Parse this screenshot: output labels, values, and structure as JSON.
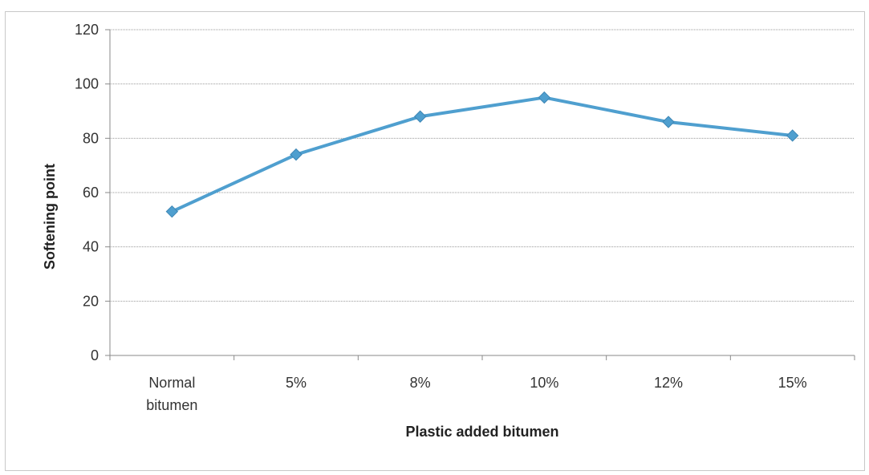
{
  "chart_data": {
    "type": "line",
    "categories": [
      "Normal bitumen",
      "5%",
      "8%",
      "10%",
      "12%",
      "15%"
    ],
    "category_lines": [
      [
        "Normal",
        "bitumen"
      ],
      [
        "5%"
      ],
      [
        "8%"
      ],
      [
        "10%"
      ],
      [
        "12%"
      ],
      [
        "15%"
      ]
    ],
    "series": [
      {
        "values": [
          53,
          74,
          88,
          95,
          86,
          81
        ],
        "color": "#4f9fcf",
        "marker": "diamond"
      }
    ],
    "xlabel": "Plastic added bitumen",
    "ylabel": "Softening point",
    "ylim": [
      0,
      120
    ],
    "yticks": [
      0,
      20,
      40,
      60,
      80,
      100,
      120
    ],
    "grid": true,
    "legend": "none"
  }
}
